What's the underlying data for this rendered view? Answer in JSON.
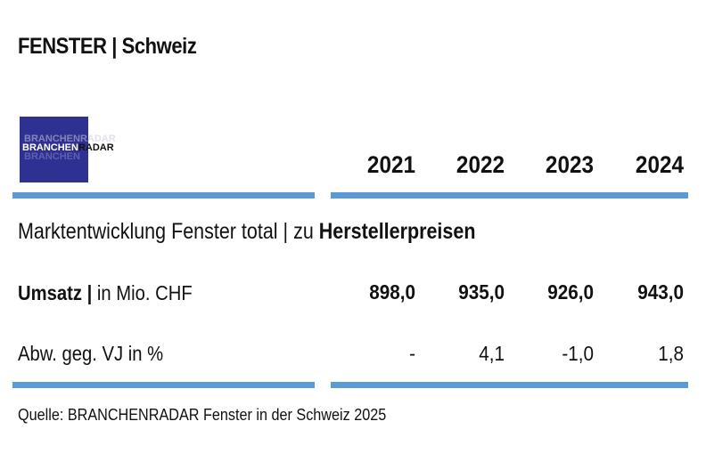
{
  "title": "FENSTER | Schweiz",
  "logo": {
    "part_a": "BRANCHEN",
    "part_b": "RADAR"
  },
  "years": [
    "2021",
    "2022",
    "2023",
    "2024"
  ],
  "subtitle": {
    "normal": "Marktentwicklung Fenster total | zu ",
    "bold": "Herstellerpreisen"
  },
  "rows": [
    {
      "label_bold": "Umsatz |",
      "label_normal": " in Mio. CHF",
      "values": [
        "898,0",
        "935,0",
        "926,0",
        "943,0"
      ]
    },
    {
      "label_bold": "",
      "label_normal": "Abw. geg. VJ in %",
      "values": [
        "-",
        "4,1",
        "-1,0",
        "1,8"
      ]
    }
  ],
  "source": "Quelle: BRANCHENRADAR Fenster in der Schweiz 2025",
  "colors": {
    "rule": "#5b9bd5",
    "logo_bg": "#2e3192"
  }
}
